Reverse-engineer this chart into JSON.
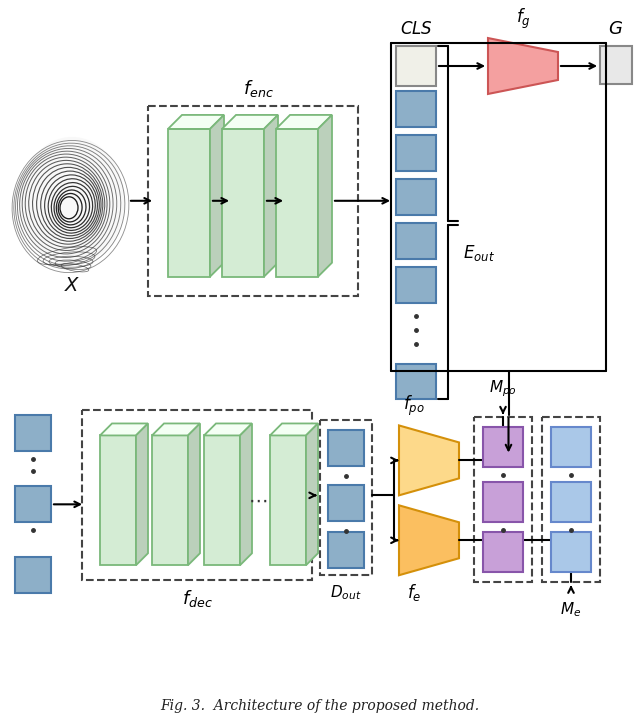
{
  "title": "Fig. 3.  Architecture of the proposed method.",
  "bg_color": "#ffffff",
  "green_face": "#d4ecd4",
  "green_edge": "#7ab87a",
  "green_side_face": "#b8dcb8",
  "blue_box_face": "#8dafc8",
  "blue_box_edge": "#4a7aaa",
  "pink_trapez_face": "#f4a0a0",
  "pink_trapez_edge": "#cc5555",
  "yellow_trapez_face": "#fdd98a",
  "yellow_trapez_edge": "#d4900a",
  "orange_trapez_face": "#fbbf60",
  "orange_trapez_edge": "#d4900a",
  "purple_box_face": "#c8a0d8",
  "purple_box_edge": "#8855aa",
  "lightblue_box_face": "#aac8e8",
  "lightblue_box_edge": "#6688cc",
  "white_box_face": "#f0f0e8",
  "white_box_edge": "#999999",
  "gray_box_face": "#e8e8e8",
  "gray_box_edge": "#999999",
  "text_color": "#111111"
}
